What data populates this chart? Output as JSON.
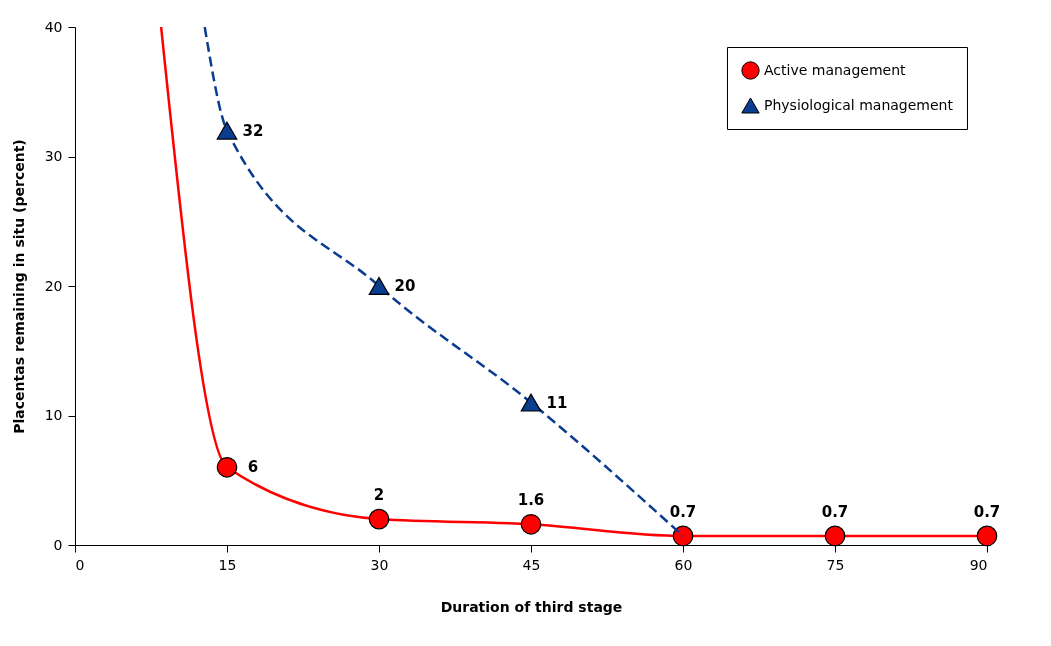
{
  "chart_data": {
    "type": "line",
    "xlabel": "Duration of third stage",
    "ylabel": "Placentas remaining in situ (percent)",
    "xlim": [
      0,
      90
    ],
    "xticks": [
      0,
      15,
      30,
      45,
      60,
      75,
      90
    ],
    "ylim": [
      0,
      40
    ],
    "yticks": [
      0,
      10,
      20,
      30,
      40
    ],
    "grid": false,
    "legend": "top right",
    "series": [
      {
        "name": "Active management",
        "color": "#ff0000",
        "marker": "circle",
        "line_style": "solid",
        "x": [
          8.5,
          15,
          30,
          45,
          60,
          75,
          90
        ],
        "values": [
          40,
          6,
          2,
          1.6,
          0.7,
          0.7,
          0.7
        ],
        "value_labels": [
          null,
          "6",
          "2",
          "1.6",
          "0.7",
          "0.7",
          "0.7"
        ]
      },
      {
        "name": "Physiological management",
        "color": "#0a3d8f",
        "marker": "triangle",
        "line_style": "dashed",
        "x": [
          12.8,
          15,
          30,
          45,
          60
        ],
        "values": [
          40,
          32,
          20,
          11,
          0.7
        ],
        "value_labels": [
          null,
          "32",
          "20",
          "11",
          null
        ]
      }
    ]
  }
}
